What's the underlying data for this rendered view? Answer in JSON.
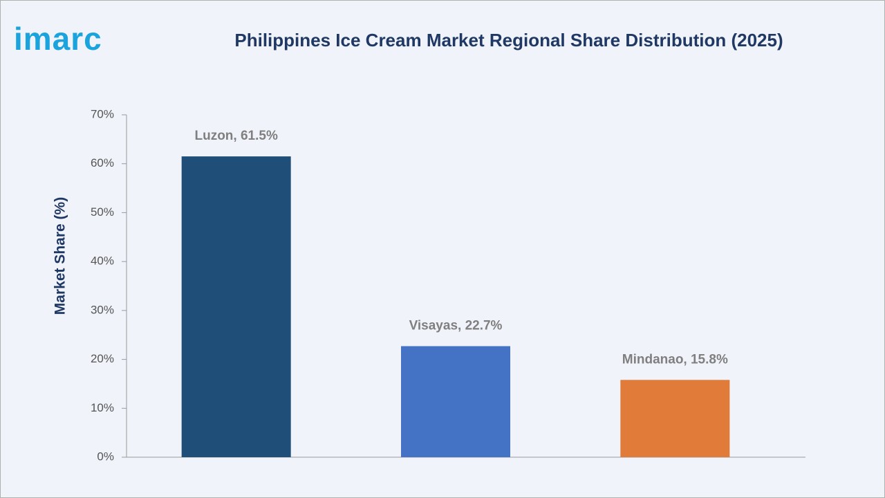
{
  "logo": "imarc",
  "chart_data": {
    "type": "bar",
    "title": "Philippines Ice Cream Market Regional Share Distribution (2025)",
    "y_label": "Market Share (%)",
    "values": [
      61.5,
      22.7,
      15.8
    ],
    "value_labels": [
      "Luzon, 61.5%",
      "Visayas, 22.7%",
      "Mindanao, 15.8%"
    ],
    "colors": [
      "#1f4e79",
      "#4472c4",
      "#e07b39"
    ],
    "ylim": [
      0,
      70
    ],
    "yticks": [
      {
        "value": 0,
        "label": "0%"
      },
      {
        "value": 10,
        "label": "10%"
      },
      {
        "value": 20,
        "label": "20%"
      },
      {
        "value": 30,
        "label": "30%"
      },
      {
        "value": 40,
        "label": "40%"
      },
      {
        "value": 50,
        "label": "50%"
      },
      {
        "value": 60,
        "label": "60%"
      },
      {
        "value": 70,
        "label": "70%"
      }
    ],
    "grid": false
  }
}
